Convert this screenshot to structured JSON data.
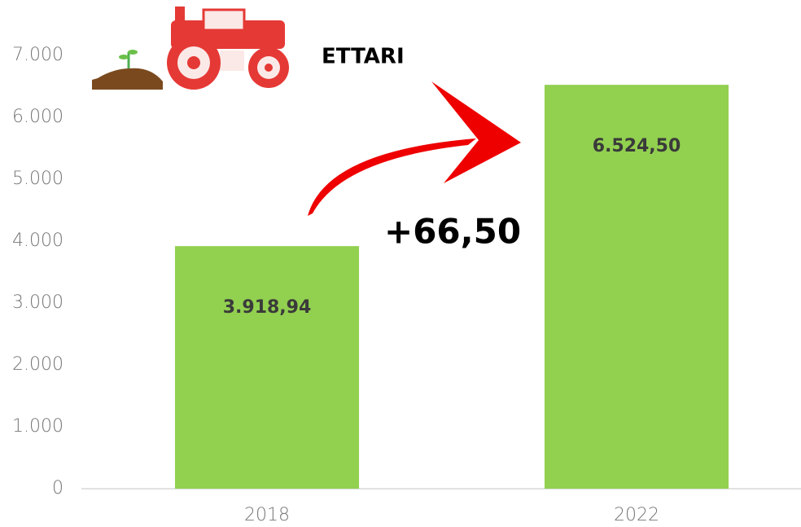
{
  "chart_data": {
    "type": "bar",
    "unit_label": "ETTARI",
    "annotation": "+66,50",
    "categories": [
      "2018",
      "2022"
    ],
    "values": [
      3918.94,
      6524.5
    ],
    "value_labels": [
      "3.918,94",
      "6.524,50"
    ],
    "color": "#92d050",
    "ylim": [
      0,
      7000
    ],
    "yticks": [
      0,
      {
        "value": 1000,
        "label": "1.000"
      },
      {
        "value": 2000,
        "label": "2.000"
      },
      {
        "value": 3000,
        "label": "3.000"
      },
      {
        "value": 4000,
        "label": "4.000"
      },
      {
        "value": 5000,
        "label": "5.000"
      },
      {
        "value": 6000,
        "label": "6.000"
      },
      {
        "value": 7000,
        "label": "7.000"
      }
    ],
    "grid": false
  }
}
